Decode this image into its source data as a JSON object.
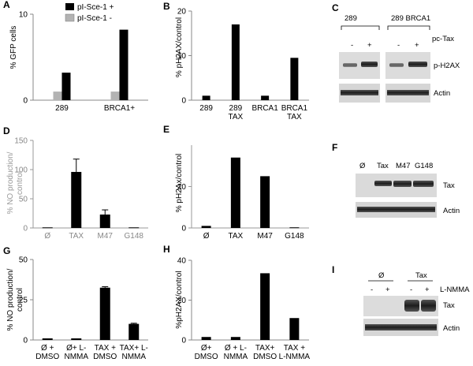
{
  "panels": {
    "A": {
      "letter": "A",
      "ylabel": "% GFP cells"
    },
    "B": {
      "letter": "B",
      "ylabel": "% pH2AX/control"
    },
    "C": {
      "letter": "C",
      "col1": "289",
      "col2": "289 BRCA1",
      "treatment": "pc-Tax",
      "signs": [
        "-",
        "+",
        "-",
        "+"
      ],
      "row1": "p-H2AX",
      "row2": "Actin"
    },
    "D": {
      "letter": "D",
      "ylabel_line1": "% NO production/",
      "ylabel_line2": "control"
    },
    "E": {
      "letter": "E",
      "ylabel": "% pH2Ax/control"
    },
    "F": {
      "letter": "F",
      "lanes": [
        "Ø",
        "Tax",
        "M47",
        "G148"
      ],
      "row1": "Tax",
      "row2": "Actin"
    },
    "G": {
      "letter": "G",
      "ylabel_line1": "% NO production/",
      "ylabel_line2": "control"
    },
    "H": {
      "letter": "H",
      "ylabel": "%pH2AX/control"
    },
    "I": {
      "letter": "I",
      "group1": "Ø",
      "group2": "Tax",
      "treatment": "L-NMMA",
      "signs": [
        "-",
        "+",
        "-",
        "+"
      ],
      "row1": "Tax",
      "row2": "Actin"
    }
  },
  "chart_data": [
    {
      "id": "A",
      "type": "bar",
      "categories": [
        "289",
        "BRCA1+"
      ],
      "series": [
        {
          "name": "pI-Sce-1 +",
          "color": "#000000",
          "values": [
            3.2,
            8.2
          ]
        },
        {
          "name": "pI-Sce-1 -",
          "color": "#b3b3b3",
          "values": [
            1.0,
            1.0
          ]
        }
      ],
      "ylabel": "% GFP cells",
      "ylim": [
        0,
        10
      ],
      "yticks": [
        0,
        10
      ],
      "yticklabels": [
        "0",
        "10"
      ],
      "legend": "top-right"
    },
    {
      "id": "B",
      "type": "bar",
      "categories": [
        "289",
        "289\nTAX",
        "BRCA1",
        "BRCA1\nTAX"
      ],
      "values": [
        1.0,
        17.0,
        1.0,
        9.5
      ],
      "ylabel": "% pH2AX/control",
      "ylim": [
        0,
        20
      ],
      "yticks": [
        0,
        10,
        20
      ],
      "yticklabels": [
        "0",
        "10",
        "20"
      ]
    },
    {
      "id": "D",
      "type": "bar",
      "categories": [
        "Ø",
        "TAX",
        "M47",
        "G148"
      ],
      "values": [
        1,
        96,
        23,
        1
      ],
      "errors": [
        0,
        22,
        8,
        0
      ],
      "ylabel": "% NO production/\ncontrol",
      "ylim": [
        0,
        150
      ],
      "yticks": [
        0,
        50,
        100,
        150
      ],
      "yticklabels": [
        "0",
        "50",
        "100",
        "150"
      ]
    },
    {
      "id": "E",
      "type": "bar",
      "categories": [
        "Ø",
        "TAX",
        "M47",
        "G148"
      ],
      "values": [
        1,
        34,
        25,
        0.3
      ],
      "ylabel": "% pH2Ax/control",
      "ylim": [
        0,
        40
      ],
      "yticks": [
        0,
        20
      ],
      "yticklabels": [
        "0",
        "20"
      ]
    },
    {
      "id": "G",
      "type": "bar",
      "categories": [
        "Ø +\nDMSO",
        "Ø+ L-\nNMMA",
        "TAX +\nDMSO",
        "TAX+ L-\nNMMA"
      ],
      "values": [
        1,
        1,
        32.5,
        10
      ],
      "errors": [
        0,
        0,
        0.6,
        0.4
      ],
      "ylabel": "% NO production/\ncontrol",
      "ylim": [
        0,
        50
      ],
      "yticks": [
        0,
        25,
        50
      ],
      "yticklabels": [
        "0",
        "25",
        "50"
      ]
    },
    {
      "id": "H",
      "type": "bar",
      "categories": [
        "Ø+\nDMSO",
        "Ø + L-\nNMMA",
        "TAX+\nDMSO",
        "TAX +\nL-NMMA"
      ],
      "values": [
        1.5,
        1.5,
        33.5,
        11
      ],
      "ylabel": "%pH2AX/control",
      "ylim": [
        0,
        40
      ],
      "yticks": [
        0,
        20,
        40
      ],
      "yticklabels": [
        "0",
        "20",
        "40"
      ]
    }
  ]
}
